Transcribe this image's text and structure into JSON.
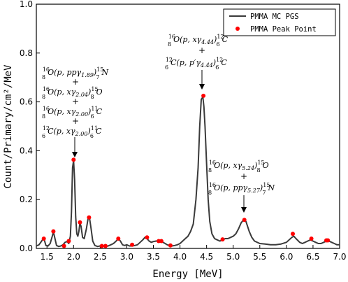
{
  "chart_data": {
    "type": "line",
    "xlabel": "Energy [MeV]",
    "ylabel": "Count/Primary/cm²/MeV",
    "xlim": [
      1.3,
      7.0
    ],
    "ylim": [
      0.0,
      1.0
    ],
    "xticks": [
      "1.5",
      "2.0",
      "2.5",
      "3.0",
      "3.5",
      "4.0",
      "4.5",
      "5.0",
      "5.5",
      "6.0",
      "6.5",
      "7.0"
    ],
    "yticks": [
      "0.0",
      "0.2",
      "0.4",
      "0.6",
      "0.8",
      "1.0"
    ],
    "legend_position": "top-right",
    "grid": false,
    "colors": {
      "line": "#3a3a3a",
      "points": "#ff0000",
      "axis": "#000000"
    },
    "series": [
      {
        "name": "PMMA MC PGS",
        "kind": "line",
        "x": [
          1.3,
          1.35,
          1.4,
          1.43,
          1.45,
          1.48,
          1.52,
          1.56,
          1.6,
          1.62,
          1.64,
          1.68,
          1.72,
          1.76,
          1.8,
          1.84,
          1.88,
          1.91,
          1.94,
          1.96,
          1.98,
          2.0,
          2.02,
          2.04,
          2.06,
          2.08,
          2.1,
          2.12,
          2.14,
          2.17,
          2.2,
          2.24,
          2.27,
          2.3,
          2.33,
          2.36,
          2.4,
          2.45,
          2.5,
          2.55,
          2.6,
          2.65,
          2.7,
          2.75,
          2.8,
          2.84,
          2.88,
          2.92,
          2.96,
          3.0,
          3.05,
          3.1,
          3.15,
          3.2,
          3.25,
          3.3,
          3.34,
          3.38,
          3.42,
          3.46,
          3.5,
          3.55,
          3.6,
          3.64,
          3.68,
          3.72,
          3.76,
          3.8,
          3.85,
          3.9,
          3.95,
          4.0,
          4.05,
          4.1,
          4.15,
          4.2,
          4.25,
          4.3,
          4.34,
          4.37,
          4.4,
          4.43,
          4.45,
          4.47,
          4.5,
          4.53,
          4.56,
          4.6,
          4.65,
          4.7,
          4.75,
          4.8,
          4.85,
          4.9,
          4.95,
          5.0,
          5.05,
          5.1,
          5.15,
          5.18,
          5.21,
          5.24,
          5.27,
          5.3,
          5.35,
          5.4,
          5.5,
          5.6,
          5.7,
          5.8,
          5.9,
          6.0,
          6.05,
          6.1,
          6.14,
          6.18,
          6.25,
          6.3,
          6.35,
          6.4,
          6.45,
          6.5,
          6.55,
          6.6,
          6.65,
          6.7,
          6.75,
          6.8,
          6.85,
          6.9,
          6.95,
          7.0
        ],
        "y": [
          0.01,
          0.015,
          0.03,
          0.04,
          0.035,
          0.012,
          0.01,
          0.02,
          0.05,
          0.068,
          0.05,
          0.012,
          0.008,
          0.01,
          0.015,
          0.025,
          0.028,
          0.02,
          0.05,
          0.15,
          0.33,
          0.36,
          0.28,
          0.13,
          0.06,
          0.05,
          0.07,
          0.105,
          0.09,
          0.045,
          0.04,
          0.08,
          0.12,
          0.125,
          0.08,
          0.03,
          0.012,
          0.008,
          0.01,
          0.01,
          0.008,
          0.01,
          0.015,
          0.02,
          0.03,
          0.04,
          0.03,
          0.015,
          0.012,
          0.015,
          0.01,
          0.01,
          0.012,
          0.015,
          0.025,
          0.035,
          0.045,
          0.04,
          0.03,
          0.025,
          0.028,
          0.03,
          0.03,
          0.028,
          0.025,
          0.02,
          0.015,
          0.012,
          0.01,
          0.012,
          0.015,
          0.02,
          0.03,
          0.04,
          0.05,
          0.07,
          0.1,
          0.2,
          0.33,
          0.5,
          0.61,
          0.62,
          0.58,
          0.5,
          0.35,
          0.2,
          0.11,
          0.06,
          0.04,
          0.035,
          0.03,
          0.035,
          0.04,
          0.04,
          0.045,
          0.05,
          0.06,
          0.08,
          0.105,
          0.113,
          0.114,
          0.11,
          0.09,
          0.07,
          0.045,
          0.03,
          0.02,
          0.018,
          0.015,
          0.015,
          0.018,
          0.025,
          0.035,
          0.045,
          0.05,
          0.04,
          0.025,
          0.02,
          0.025,
          0.03,
          0.035,
          0.03,
          0.025,
          0.02,
          0.02,
          0.025,
          0.03,
          0.03,
          0.025,
          0.02,
          0.015,
          0.015
        ]
      },
      {
        "name": "PMMA Peak Point",
        "kind": "scatter",
        "x": [
          1.44,
          1.62,
          1.82,
          1.91,
          2.0,
          2.12,
          2.29,
          2.53,
          2.6,
          2.84,
          3.1,
          3.38,
          3.6,
          3.65,
          3.82,
          4.44,
          4.8,
          5.21,
          6.12,
          6.47,
          6.75,
          6.78
        ],
        "y": [
          0.04,
          0.07,
          0.01,
          0.03,
          0.363,
          0.107,
          0.127,
          0.01,
          0.01,
          0.04,
          0.015,
          0.045,
          0.03,
          0.03,
          0.012,
          0.625,
          0.037,
          0.117,
          0.06,
          0.04,
          0.033,
          0.033
        ]
      }
    ],
    "annotations": [
      {
        "id": "peak-2",
        "arrow_target": [
          2.0,
          0.363
        ],
        "lines": [
          "16 8 O(p,ppγ 1.89) 15 7 N",
          "+",
          "16 8 O(p,xγ 2.04) 15 8 O",
          "+",
          "16 8 O(p,xγ 2.00) 11 6 C",
          "+",
          "12 6 C(p,xγ 2.00) 11 6 C"
        ]
      },
      {
        "id": "peak-444",
        "arrow_target": [
          4.44,
          0.625
        ],
        "lines": [
          "16 8 O(p,xγ 4.44) 12 6 C",
          "+",
          "12 6 C(p,p′γ 4.44) 12 6 C"
        ]
      },
      {
        "id": "peak-524",
        "arrow_target": [
          5.21,
          0.117
        ],
        "lines": [
          "16 8 O(p,xγ 5.24) 15 8 O",
          "+",
          "16 8 O(p,ppγ 5.27) 15 7 N"
        ]
      }
    ]
  }
}
